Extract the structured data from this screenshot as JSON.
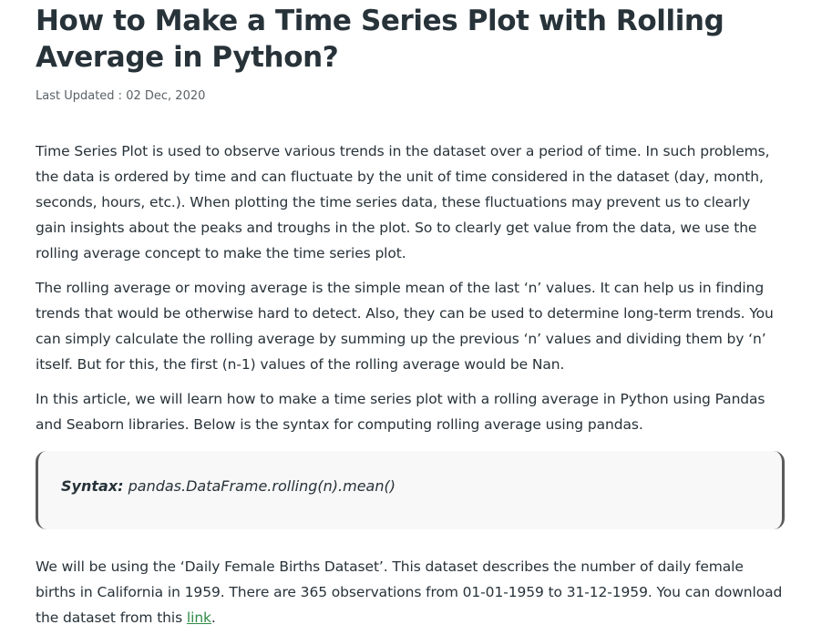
{
  "article": {
    "title": "How to Make a Time Series Plot with Rolling Average in Python?",
    "last_updated_label": "Last Updated : ",
    "last_updated_date": "02 Dec, 2020",
    "paragraphs": [
      "Time Series Plot is used to observe various trends in the dataset over a period of time. In such problems, the data is ordered by time and can fluctuate by the unit of time considered in the dataset (day, month, seconds, hours, etc.). When plotting the time series data, these fluctuations may prevent us to clearly gain insights about the peaks and troughs in the plot. So to clearly get value from the data, we use the rolling average concept to make the time series plot.",
      "The rolling average or moving average is the simple mean of the last ‘n’ values. It can help us in finding trends that would be otherwise hard to detect. Also, they can be used to determine long-term trends. You can simply calculate the rolling average by summing up the previous ‘n’ values and dividing them by ‘n’ itself. But for this, the first (n-1) values of the rolling average would be Nan.",
      "In this article, we will learn how to make a time series plot with a rolling average in Python using Pandas and Seaborn libraries. Below is the syntax for computing rolling average using pandas."
    ],
    "syntax": {
      "label": "Syntax:",
      "code": " pandas.DataFrame.rolling(n).mean()"
    },
    "dataset_paragraph": {
      "text": "We will be using the ‘Daily Female Births Dataset’. This dataset describes the number of daily female births in California in 1959. There are 365 observations from 01-01-1959 to 31-12-1959. You can download the dataset from this ",
      "link_text": "link",
      "end": "."
    }
  }
}
